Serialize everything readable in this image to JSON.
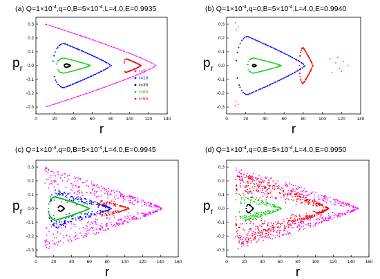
{
  "chart_data": [
    {
      "type": "scatter",
      "title": "(a) Q=1×10",
      "title_parts": {
        "pre": "(a) Q=1×10",
        "exp1": "-4",
        "mid": ",q=0,B=5×10",
        "exp2": "-4",
        "post": ",L=4.0,E=0.9935"
      },
      "xlabel": "r",
      "ylabel": "p",
      "ylabel_sub": "r",
      "xlim": [
        0,
        140
      ],
      "ylim": [
        -0.35,
        0.35
      ],
      "xticks": [
        "0",
        "20",
        "40",
        "60",
        "80",
        "100",
        "120",
        "140"
      ],
      "yticks": [
        "-0.3",
        "-0.2",
        "-0.1",
        "0.0",
        "0.1",
        "0.2",
        "0.3"
      ],
      "legend_placement": "bottom-right",
      "series": [
        {
          "name": "r=5",
          "color": "#ff00ff"
        },
        {
          "name": "r=10",
          "color": "#0000ff"
        },
        {
          "name": "r=30",
          "color": "#000000"
        },
        {
          "name": "r=60",
          "color": "#00cc00"
        },
        {
          "name": "r=90",
          "color": "#ff0000"
        }
      ]
    },
    {
      "type": "scatter",
      "title_parts": {
        "pre": "(b) Q=1×10",
        "exp1": "-4",
        "mid": ",q=0,B=5×10",
        "exp2": "-4",
        "post": ",L=4.0,E=0.9940"
      },
      "xlabel": "r",
      "ylabel": "p",
      "ylabel_sub": "r",
      "xlim": [
        0,
        140
      ],
      "ylim": [
        -0.35,
        0.35
      ],
      "xticks": [
        "0",
        "20",
        "40",
        "60",
        "80",
        "100",
        "120",
        "140"
      ],
      "yticks": [
        "-0.3",
        "-0.2",
        "-0.1",
        "0.0",
        "0.1",
        "0.2",
        "0.3"
      ]
    },
    {
      "type": "scatter",
      "title_parts": {
        "pre": "(c) Q=1×10",
        "exp1": "-4",
        "mid": ",q=0,B=5×10",
        "exp2": "-4",
        "post": ",L=4.0,E=0.9945"
      },
      "xlabel": "r",
      "ylabel": "p",
      "ylabel_sub": "r",
      "xlim": [
        0,
        160
      ],
      "ylim": [
        -0.35,
        0.35
      ],
      "xticks": [
        "0",
        "20",
        "40",
        "60",
        "80",
        "100",
        "120",
        "140",
        "160"
      ],
      "yticks": [
        "-0.3",
        "-0.2",
        "-0.1",
        "0.0",
        "0.1",
        "0.2",
        "0.3"
      ]
    },
    {
      "type": "scatter",
      "title_parts": {
        "pre": "(d) Q=1×10",
        "exp1": "-4",
        "mid": ",q=0,B=5×10",
        "exp2": "-4",
        "post": ",L=4.0,E=0.9950"
      },
      "xlabel": "r",
      "ylabel": "p",
      "ylabel_sub": "r",
      "xlim": [
        0,
        160
      ],
      "ylim": [
        -0.35,
        0.35
      ],
      "xticks": [
        "0",
        "20",
        "40",
        "60",
        "80",
        "100",
        "120",
        "140",
        "160"
      ],
      "yticks": [
        "-0.3",
        "-0.2",
        "-0.1",
        "0.0",
        "0.1",
        "0.2",
        "0.3"
      ]
    }
  ],
  "curves": {
    "a": {
      "magenta": {
        "style": "dots",
        "color": "#ff00ff",
        "rmin": 10,
        "rmax": 128,
        "ymax": 0.3,
        "peak": 10,
        "n": 170
      },
      "blue": {
        "style": "loop",
        "color": "#0000ff",
        "rmin": 18,
        "rmax": 80,
        "ymax": 0.16,
        "peak": 30,
        "n": 90
      },
      "green": {
        "style": "dash",
        "color": "#00cc00",
        "rmin": 22,
        "rmax": 58,
        "ymax": 0.055,
        "peak": 30,
        "n": 60
      },
      "black": {
        "style": "loop",
        "color": "#000000",
        "rmin": 30,
        "rmax": 37,
        "ymax": 0.012,
        "peak": 33,
        "n": 30
      },
      "red": {
        "style": "loop",
        "color": "#ff0000",
        "rmin": 94,
        "rmax": 112,
        "ymax": 0.05,
        "peak": 96,
        "n": 50
      }
    },
    "b": {
      "magenta": {
        "style": "sparse",
        "color": "#ff00ff",
        "points": [
          [
            9,
            0.31
          ],
          [
            10,
            0.26
          ],
          [
            9,
            -0.29
          ],
          [
            10,
            -0.26
          ],
          [
            12,
            0.28
          ],
          [
            12,
            -0.28
          ],
          [
            108,
            0.05
          ],
          [
            114,
            0.02
          ],
          [
            118,
            -0.02
          ],
          [
            126,
            0.0
          ],
          [
            122,
            0.03
          ],
          [
            120,
            -0.04
          ],
          [
            110,
            -0.05
          ],
          [
            116,
            0.06
          ]
        ]
      },
      "blue": {
        "style": "loop",
        "color": "#0000ff",
        "rmin": 10,
        "rmax": 82,
        "ymax": 0.21,
        "peak": 22,
        "n": 100
      },
      "green": {
        "style": "dash",
        "color": "#00cc00",
        "rmin": 22,
        "rmax": 57,
        "ymax": 0.055,
        "peak": 28,
        "n": 60
      },
      "black": {
        "style": "loop",
        "color": "#000000",
        "rmin": 27,
        "rmax": 31,
        "ymax": 0.008,
        "peak": 29,
        "n": 20
      },
      "red": {
        "style": "loop",
        "color": "#ff0000",
        "rmin": 76,
        "rmax": 90,
        "ymax": 0.13,
        "peak": 80,
        "n": 60
      }
    },
    "c": {
      "magenta": {
        "style": "cloud",
        "color": "#ff00ff",
        "rmin": 10,
        "rmax": 142,
        "ymax": 0.3,
        "peak": 10,
        "n": 520
      },
      "red": {
        "style": "cloud",
        "color": "#ff0000",
        "rmin": 70,
        "rmax": 105,
        "ymax": 0.06,
        "peak": 75,
        "n": 130
      },
      "blue": {
        "style": "cloud",
        "color": "#0000ff",
        "rmin": 14,
        "rmax": 85,
        "ymax": 0.14,
        "peak": 22,
        "n": 260
      },
      "green": {
        "style": "loop",
        "color": "#00cc00",
        "rmin": 14,
        "rmax": 60,
        "ymax": 0.085,
        "peak": 22,
        "n": 160
      },
      "black": {
        "style": "loop",
        "color": "#000000",
        "rmin": 25,
        "rmax": 32,
        "ymax": 0.02,
        "peak": 28,
        "n": 30
      }
    },
    "d": {
      "magenta": {
        "style": "cloud",
        "color": "#ff00ff",
        "rmin": 10,
        "rmax": 148,
        "ymax": 0.3,
        "peak": 10,
        "n": 480
      },
      "red": {
        "style": "cloud",
        "color": "#ff0000",
        "rmin": 10,
        "rmax": 115,
        "ymax": 0.27,
        "peak": 14,
        "n": 520
      },
      "green": {
        "style": "cloud",
        "color": "#00cc00",
        "rmin": 14,
        "rmax": 62,
        "ymax": 0.1,
        "peak": 20,
        "n": 180
      },
      "black": {
        "style": "loop",
        "color": "#000000",
        "rmin": 22,
        "rmax": 30,
        "ymax": 0.03,
        "peak": 25,
        "n": 30
      }
    }
  }
}
